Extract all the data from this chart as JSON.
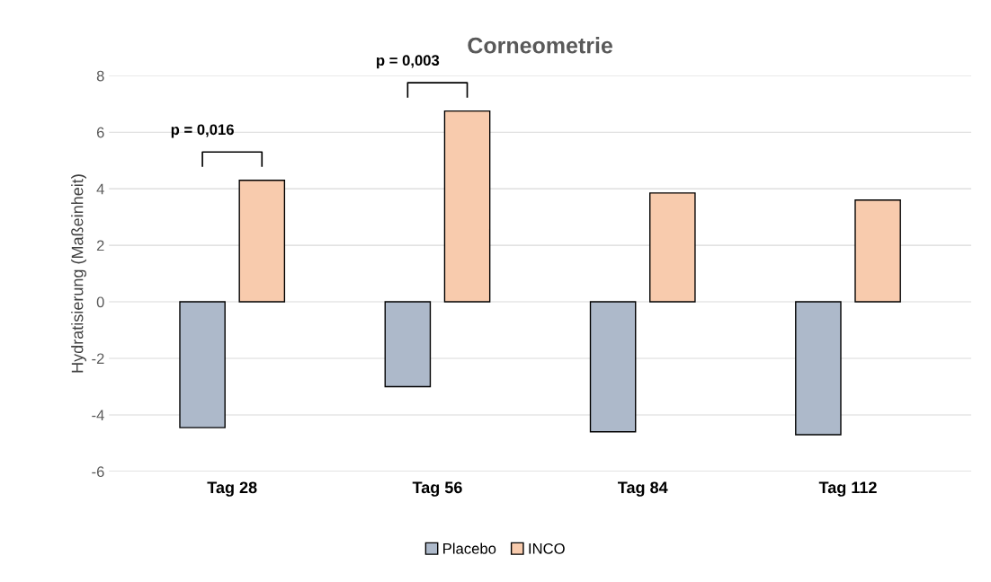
{
  "chart_data": {
    "type": "bar",
    "title": "Corneometrie",
    "ylabel": "Hydratisierung (Maßeinheit)",
    "categories": [
      "Tag 28",
      "Tag 56",
      "Tag 84",
      "Tag 112"
    ],
    "series": [
      {
        "name": "Placebo",
        "color": "#adb9ca",
        "values": [
          -4.45,
          -3.0,
          -4.6,
          -4.7
        ]
      },
      {
        "name": "INCO",
        "color": "#f8cbad",
        "values": [
          4.3,
          6.75,
          3.85,
          3.6
        ]
      }
    ],
    "ylim": [
      -6,
      8
    ],
    "yticks": [
      -6,
      -4,
      -2,
      0,
      2,
      4,
      6,
      8
    ],
    "grid": "y",
    "legend": "bottom",
    "annotations": [
      "p = 0,016",
      "p = 0,003"
    ]
  }
}
